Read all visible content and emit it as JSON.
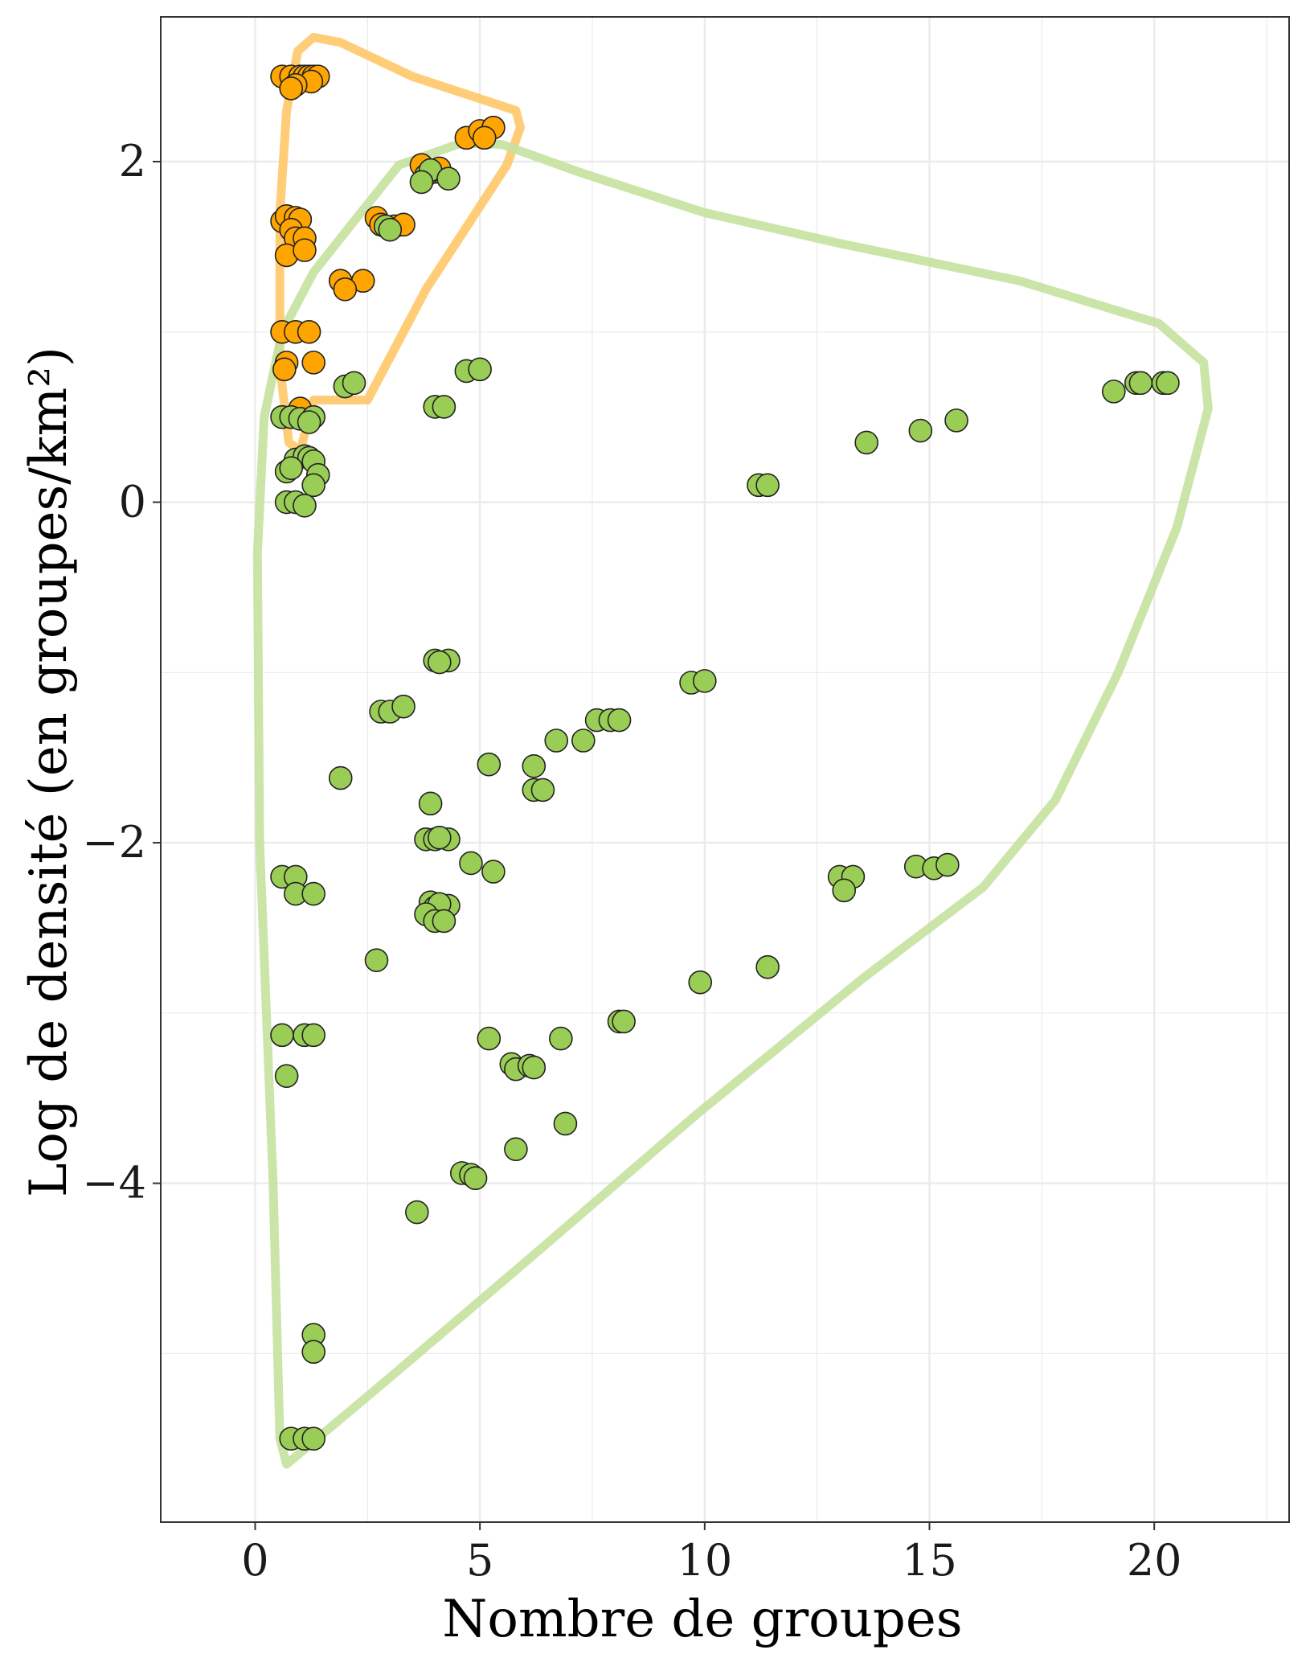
{
  "chart_data": {
    "type": "scatter",
    "title": "",
    "xlabel": "Nombre de groupes",
    "ylabel": "Log de densité (en groupes/km²)",
    "xlim": [
      -2.1,
      23.0
    ],
    "ylim": [
      -5.99,
      2.85
    ],
    "x_ticks": [
      0,
      5,
      10,
      15,
      20
    ],
    "y_ticks": [
      -4,
      -2,
      0,
      2
    ],
    "x_tick_labels": [
      "0",
      "5",
      "10",
      "15",
      "20"
    ],
    "y_tick_labels": [
      "−4",
      "−2",
      "0",
      "2"
    ],
    "grid": true,
    "legend": "none",
    "colors": {
      "orange": "#FFA500",
      "green": "#9ACD55",
      "hull_orange": "#FFC868",
      "hull_green": "#C5E2A0",
      "grid": "#EBEBEB",
      "border": "#333333",
      "point_edge": "#222222"
    },
    "series": [
      {
        "color": "orange",
        "points": [
          [
            0.6,
            2.5
          ],
          [
            0.8,
            2.5
          ],
          [
            1.0,
            2.5
          ],
          [
            1.1,
            2.5
          ],
          [
            1.2,
            2.5
          ],
          [
            1.3,
            2.5
          ],
          [
            1.4,
            2.5
          ],
          [
            1.25,
            2.47
          ],
          [
            0.9,
            2.45
          ],
          [
            0.8,
            2.43
          ],
          [
            4.7,
            2.14
          ],
          [
            5.0,
            2.18
          ],
          [
            5.3,
            2.2
          ],
          [
            5.1,
            2.14
          ],
          [
            3.7,
            1.98
          ],
          [
            4.0,
            1.94
          ],
          [
            4.1,
            1.96
          ],
          [
            0.6,
            1.65
          ],
          [
            0.7,
            1.68
          ],
          [
            0.9,
            1.67
          ],
          [
            1.0,
            1.66
          ],
          [
            2.7,
            1.67
          ],
          [
            3.1,
            1.62
          ],
          [
            3.3,
            1.63
          ],
          [
            2.8,
            1.63
          ],
          [
            0.8,
            1.6
          ],
          [
            0.9,
            1.55
          ],
          [
            1.1,
            1.55
          ],
          [
            0.7,
            1.45
          ],
          [
            1.1,
            1.48
          ],
          [
            1.9,
            1.3
          ],
          [
            2.4,
            1.3
          ],
          [
            2.0,
            1.25
          ],
          [
            0.6,
            1.0
          ],
          [
            0.9,
            1.0
          ],
          [
            1.2,
            1.0
          ],
          [
            1.3,
            0.82
          ],
          [
            0.7,
            0.82
          ],
          [
            0.65,
            0.78
          ],
          [
            1.0,
            0.55
          ]
        ]
      },
      {
        "color": "green",
        "points": [
          [
            3.8,
            1.92
          ],
          [
            3.9,
            1.95
          ],
          [
            4.3,
            1.9
          ],
          [
            3.7,
            1.88
          ],
          [
            2.9,
            1.62
          ],
          [
            3.0,
            1.6
          ],
          [
            4.7,
            0.77
          ],
          [
            5.0,
            0.78
          ],
          [
            2.0,
            0.68
          ],
          [
            2.2,
            0.7
          ],
          [
            4.0,
            0.56
          ],
          [
            4.2,
            0.56
          ],
          [
            0.6,
            0.5
          ],
          [
            0.8,
            0.5
          ],
          [
            1.0,
            0.49
          ],
          [
            1.3,
            0.5
          ],
          [
            1.2,
            0.47
          ],
          [
            0.9,
            0.25
          ],
          [
            1.1,
            0.27
          ],
          [
            1.2,
            0.26
          ],
          [
            1.3,
            0.24
          ],
          [
            0.7,
            0.18
          ],
          [
            0.8,
            0.2
          ],
          [
            1.4,
            0.16
          ],
          [
            1.3,
            0.1
          ],
          [
            0.7,
            0.0
          ],
          [
            0.9,
            0.0
          ],
          [
            1.1,
            -0.02
          ],
          [
            11.2,
            0.1
          ],
          [
            11.4,
            0.1
          ],
          [
            13.6,
            0.35
          ],
          [
            14.8,
            0.42
          ],
          [
            15.6,
            0.48
          ],
          [
            19.1,
            0.65
          ],
          [
            19.6,
            0.7
          ],
          [
            19.7,
            0.7
          ],
          [
            20.2,
            0.7
          ],
          [
            20.3,
            0.7
          ],
          [
            4.0,
            -0.93
          ],
          [
            4.3,
            -0.93
          ],
          [
            4.1,
            -0.94
          ],
          [
            9.7,
            -1.06
          ],
          [
            10.0,
            -1.05
          ],
          [
            2.8,
            -1.23
          ],
          [
            3.0,
            -1.23
          ],
          [
            3.3,
            -1.2
          ],
          [
            7.6,
            -1.28
          ],
          [
            7.9,
            -1.28
          ],
          [
            8.1,
            -1.28
          ],
          [
            6.7,
            -1.4
          ],
          [
            7.3,
            -1.4
          ],
          [
            5.2,
            -1.54
          ],
          [
            6.2,
            -1.55
          ],
          [
            1.9,
            -1.62
          ],
          [
            6.2,
            -1.69
          ],
          [
            6.4,
            -1.69
          ],
          [
            3.9,
            -1.77
          ],
          [
            3.8,
            -1.98
          ],
          [
            4.0,
            -1.98
          ],
          [
            4.3,
            -1.98
          ],
          [
            4.1,
            -1.97
          ],
          [
            4.8,
            -2.12
          ],
          [
            5.3,
            -2.17
          ],
          [
            0.6,
            -2.2
          ],
          [
            0.9,
            -2.2
          ],
          [
            0.9,
            -2.3
          ],
          [
            1.3,
            -2.3
          ],
          [
            13.0,
            -2.2
          ],
          [
            13.3,
            -2.2
          ],
          [
            13.1,
            -2.28
          ],
          [
            14.7,
            -2.14
          ],
          [
            15.1,
            -2.15
          ],
          [
            15.4,
            -2.13
          ],
          [
            3.9,
            -2.35
          ],
          [
            4.0,
            -2.38
          ],
          [
            4.3,
            -2.37
          ],
          [
            4.1,
            -2.36
          ],
          [
            3.8,
            -2.42
          ],
          [
            4.0,
            -2.46
          ],
          [
            4.2,
            -2.46
          ],
          [
            2.7,
            -2.69
          ],
          [
            9.9,
            -2.82
          ],
          [
            11.4,
            -2.73
          ],
          [
            8.1,
            -3.05
          ],
          [
            8.2,
            -3.05
          ],
          [
            0.6,
            -3.13
          ],
          [
            1.1,
            -3.13
          ],
          [
            1.3,
            -3.13
          ],
          [
            5.2,
            -3.15
          ],
          [
            6.8,
            -3.15
          ],
          [
            0.7,
            -3.37
          ],
          [
            5.7,
            -3.3
          ],
          [
            5.8,
            -3.33
          ],
          [
            6.1,
            -3.31
          ],
          [
            6.2,
            -3.32
          ],
          [
            6.9,
            -3.65
          ],
          [
            5.8,
            -3.8
          ],
          [
            4.6,
            -3.94
          ],
          [
            4.8,
            -3.95
          ],
          [
            4.9,
            -3.97
          ],
          [
            3.6,
            -4.17
          ],
          [
            1.3,
            -4.89
          ],
          [
            1.3,
            -4.99
          ],
          [
            0.8,
            -5.5
          ],
          [
            1.1,
            -5.5
          ],
          [
            1.3,
            -5.5
          ]
        ]
      }
    ],
    "hulls": [
      {
        "color": "hull_orange",
        "points": [
          [
            1.3,
            2.73
          ],
          [
            1.9,
            2.7
          ],
          [
            3.5,
            2.5
          ],
          [
            5.8,
            2.3
          ],
          [
            5.9,
            2.2
          ],
          [
            5.6,
            1.98
          ],
          [
            3.8,
            1.25
          ],
          [
            2.5,
            0.6
          ],
          [
            1.3,
            0.6
          ],
          [
            1.0,
            0.3
          ],
          [
            0.75,
            0.35
          ],
          [
            0.55,
            0.8
          ],
          [
            0.55,
            1.7
          ],
          [
            0.7,
            2.3
          ],
          [
            0.95,
            2.65
          ]
        ]
      },
      {
        "color": "hull_green",
        "points": [
          [
            4.6,
            2.11
          ],
          [
            5.5,
            2.1
          ],
          [
            7.3,
            1.93
          ],
          [
            10.0,
            1.7
          ],
          [
            13.0,
            1.52
          ],
          [
            17.0,
            1.3
          ],
          [
            20.1,
            1.05
          ],
          [
            21.1,
            0.82
          ],
          [
            21.2,
            0.55
          ],
          [
            20.5,
            -0.15
          ],
          [
            19.2,
            -1.0
          ],
          [
            17.8,
            -1.75
          ],
          [
            16.2,
            -2.26
          ],
          [
            13.5,
            -2.8
          ],
          [
            9.8,
            -3.6
          ],
          [
            6.2,
            -4.42
          ],
          [
            3.0,
            -5.14
          ],
          [
            0.7,
            -5.65
          ],
          [
            0.55,
            -5.5
          ],
          [
            0.4,
            -4.0
          ],
          [
            0.1,
            -2.0
          ],
          [
            0.05,
            -0.3
          ],
          [
            0.2,
            0.5
          ],
          [
            0.6,
            1.0
          ],
          [
            1.3,
            1.35
          ],
          [
            2.2,
            1.65
          ],
          [
            3.2,
            1.98
          ]
        ]
      }
    ]
  }
}
